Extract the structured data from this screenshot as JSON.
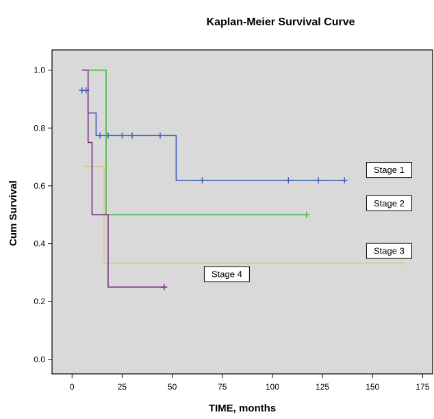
{
  "chart_data": {
    "type": "line",
    "step": true,
    "title": "Kaplan-Meier Survival Curve",
    "xlabel": "TIME, months",
    "ylabel": "Cum Survival",
    "xlim": [
      -10,
      180
    ],
    "ylim": [
      -0.05,
      1.07
    ],
    "xticks": [
      0,
      25,
      50,
      75,
      100,
      125,
      150,
      175
    ],
    "yticks": [
      0.0,
      0.2,
      0.4,
      0.6,
      0.8,
      1.0
    ],
    "ytick_labels": [
      "0.0",
      "0.2",
      "0.4",
      "0.6",
      "0.8",
      "1.0"
    ],
    "plot_background": "#d9d9d9",
    "series": [
      {
        "name": "Stage 1",
        "color": "#3f5fb0",
        "steps": [
          [
            5,
            0.93
          ],
          [
            8,
            0.93
          ],
          [
            8,
            0.852
          ],
          [
            12,
            0.852
          ],
          [
            12,
            0.774
          ],
          [
            52,
            0.774
          ],
          [
            52,
            0.619
          ],
          [
            136,
            0.619
          ]
        ],
        "censored": [
          [
            5,
            0.93
          ],
          [
            7,
            0.93
          ],
          [
            14,
            0.774
          ],
          [
            18,
            0.774
          ],
          [
            25,
            0.774
          ],
          [
            30,
            0.774
          ],
          [
            44,
            0.774
          ],
          [
            65,
            0.619
          ],
          [
            108,
            0.619
          ],
          [
            123,
            0.619
          ],
          [
            136,
            0.619
          ]
        ]
      },
      {
        "name": "Stage 2",
        "color": "#3cba3c",
        "steps": [
          [
            8,
            1.0
          ],
          [
            17,
            1.0
          ],
          [
            17,
            0.5
          ],
          [
            117,
            0.5
          ]
        ],
        "censored": [
          [
            117,
            0.5
          ]
        ]
      },
      {
        "name": "Stage 3",
        "color": "#d9c99a",
        "steps": [
          [
            5,
            0.667
          ],
          [
            16,
            0.667
          ],
          [
            16,
            0.333
          ],
          [
            165,
            0.333
          ]
        ],
        "censored": [
          [
            165,
            0.333
          ]
        ]
      },
      {
        "name": "Stage 4",
        "color": "#7b2a86",
        "steps": [
          [
            5,
            1.0
          ],
          [
            8,
            1.0
          ],
          [
            8,
            0.75
          ],
          [
            10,
            0.75
          ],
          [
            10,
            0.5
          ],
          [
            18,
            0.5
          ],
          [
            18,
            0.25
          ],
          [
            46,
            0.25
          ]
        ],
        "censored": [
          [
            46,
            0.25
          ]
        ]
      }
    ],
    "annotations": [
      {
        "text": "Stage 1",
        "x": 147,
        "y": 0.655
      },
      {
        "text": "Stage 2",
        "x": 147,
        "y": 0.54
      },
      {
        "text": "Stage 3",
        "x": 147,
        "y": 0.375
      },
      {
        "text": "Stage 4",
        "x": 66,
        "y": 0.295
      }
    ]
  }
}
